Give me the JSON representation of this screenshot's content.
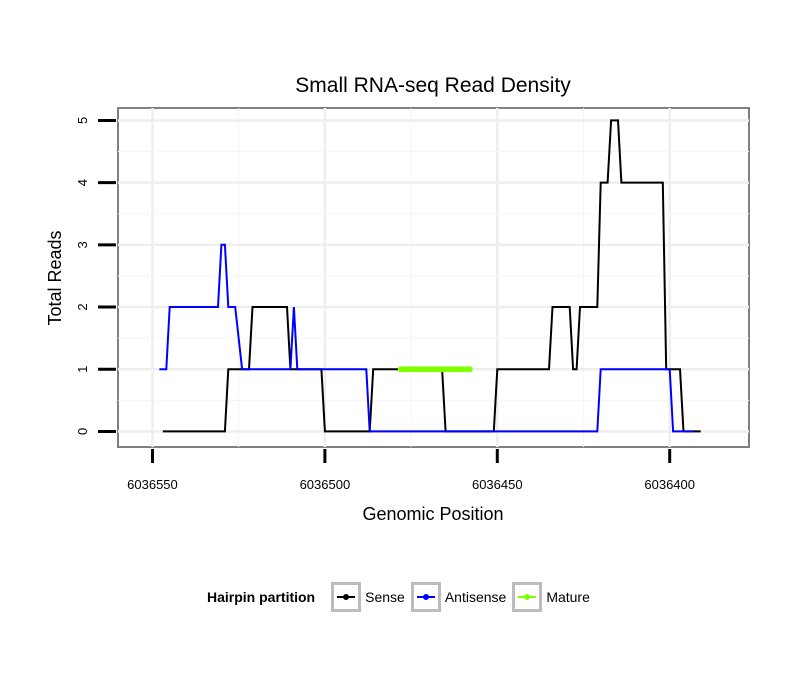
{
  "chart_data": {
    "type": "line",
    "title": "Small RNA-seq Read Density",
    "xlabel": "Genomic Position",
    "ylabel": "Total Reads",
    "x_reversed": true,
    "xlim": [
      6036560,
      6036377
    ],
    "ylim": [
      -0.25,
      5.2
    ],
    "x_ticks": [
      6036550,
      6036500,
      6036450,
      6036400
    ],
    "x_tick_labels": [
      "6036550",
      "6036500",
      "6036450",
      "6036400"
    ],
    "y_ticks": [
      0,
      1,
      2,
      3,
      4,
      5
    ],
    "y_tick_labels": [
      "0",
      "1",
      "2",
      "3",
      "4",
      "5"
    ],
    "grid": true,
    "legend_title": "Hairpin partition",
    "legend_position": "bottom",
    "series": [
      {
        "name": "Sense",
        "color": "#000000",
        "points": [
          [
            6036547,
            0
          ],
          [
            6036529,
            0
          ],
          [
            6036528,
            1
          ],
          [
            6036522,
            1
          ],
          [
            6036521,
            2
          ],
          [
            6036511,
            2
          ],
          [
            6036510,
            1
          ],
          [
            6036501,
            1
          ],
          [
            6036500,
            0
          ],
          [
            6036487,
            0
          ],
          [
            6036486,
            1
          ],
          [
            6036466,
            1
          ],
          [
            6036465,
            0
          ],
          [
            6036451,
            0
          ],
          [
            6036450,
            1
          ],
          [
            6036435,
            1
          ],
          [
            6036434,
            2
          ],
          [
            6036429,
            2
          ],
          [
            6036428,
            1
          ],
          [
            6036427,
            1
          ],
          [
            6036426,
            2
          ],
          [
            6036421,
            2
          ],
          [
            6036420,
            4
          ],
          [
            6036418,
            4
          ],
          [
            6036417,
            5
          ],
          [
            6036415,
            5
          ],
          [
            6036414,
            4
          ],
          [
            6036402,
            4
          ],
          [
            6036401,
            1
          ],
          [
            6036397,
            1
          ],
          [
            6036396,
            0
          ],
          [
            6036391,
            0
          ]
        ]
      },
      {
        "name": "Antisense",
        "color": "#0000ff",
        "points": [
          [
            6036548,
            1
          ],
          [
            6036546,
            1
          ],
          [
            6036545,
            2
          ],
          [
            6036531,
            2
          ],
          [
            6036530,
            3
          ],
          [
            6036529,
            3
          ],
          [
            6036528,
            2
          ],
          [
            6036526,
            2
          ],
          [
            6036524,
            1
          ],
          [
            6036510,
            1
          ],
          [
            6036509,
            2
          ],
          [
            6036508,
            1
          ],
          [
            6036488,
            1
          ],
          [
            6036487,
            0
          ],
          [
            6036421,
            0
          ],
          [
            6036420,
            1
          ],
          [
            6036400,
            1
          ],
          [
            6036399,
            0
          ],
          [
            6036393,
            0
          ]
        ]
      },
      {
        "name": "Mature",
        "color": "#7fff00",
        "points": [
          [
            6036478,
            1
          ],
          [
            6036458,
            1
          ]
        ]
      }
    ]
  }
}
